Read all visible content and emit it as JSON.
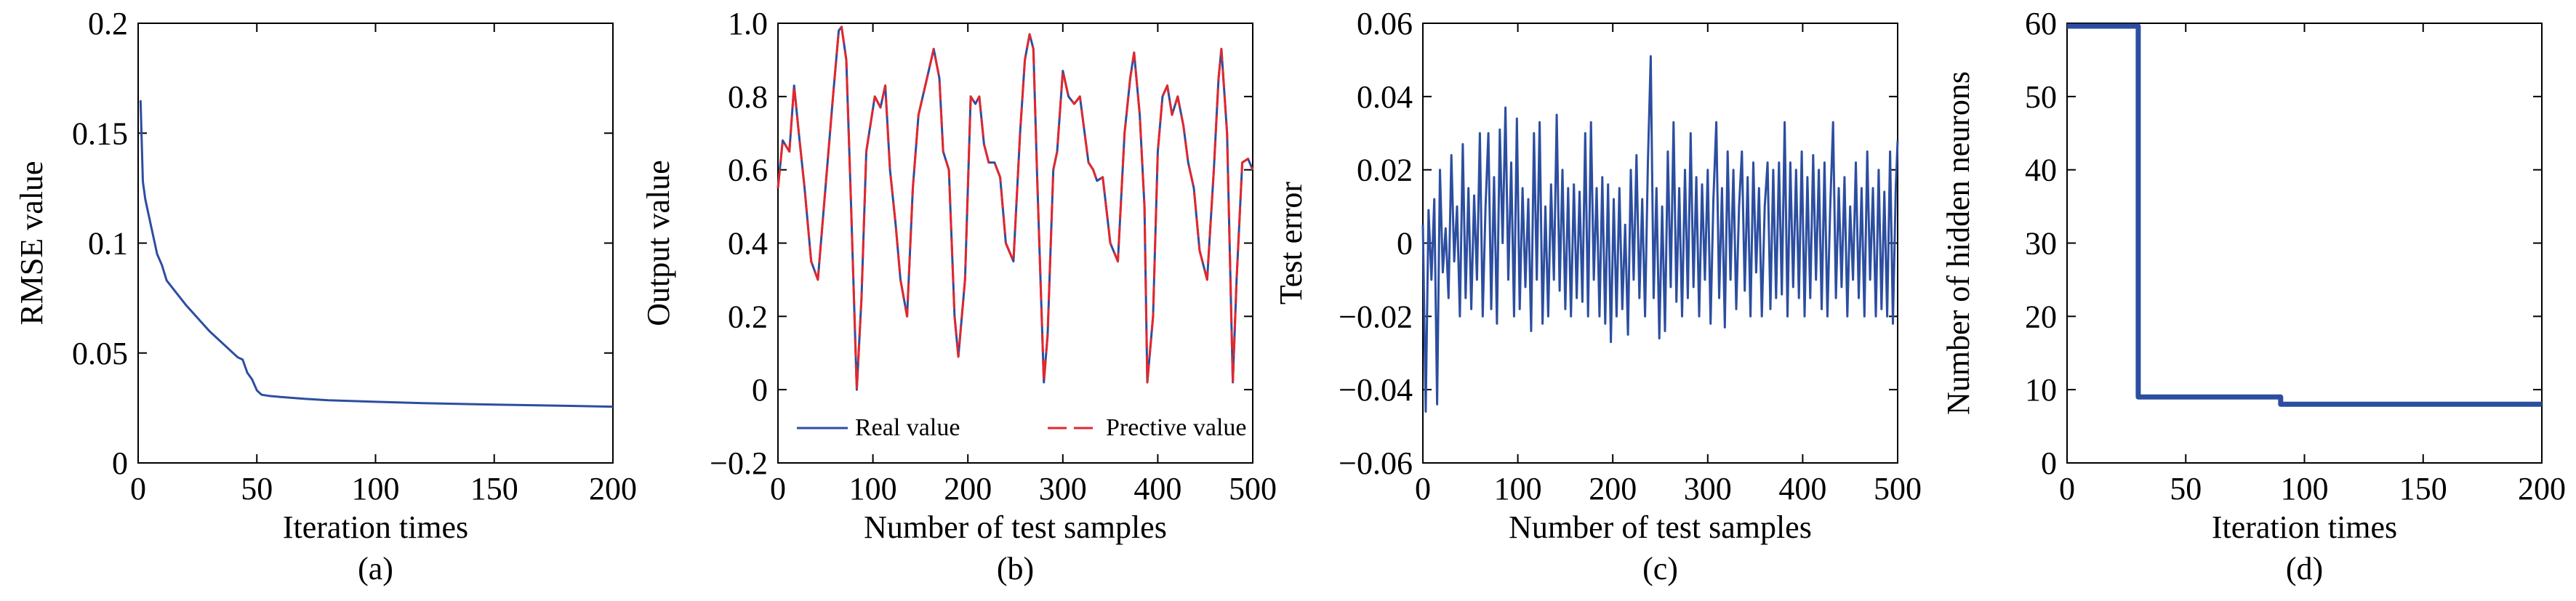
{
  "chart_data": [
    {
      "type": "line",
      "caption": "(a)",
      "xlabel": "Iteration times",
      "ylabel": "RMSE value",
      "xlim": [
        0,
        200
      ],
      "ylim": [
        0,
        0.2
      ],
      "xticks": [
        "0",
        "50",
        "100",
        "150",
        "200"
      ],
      "yticks": [
        "0",
        "0.05",
        "0.1",
        "0.15",
        "0.2"
      ],
      "series": [
        {
          "color": "#2c4ea0",
          "x": [
            1,
            2,
            3,
            5,
            8,
            10,
            12,
            20,
            30,
            40,
            42,
            44,
            46,
            48,
            50,
            52,
            55,
            60,
            70,
            80,
            100,
            120,
            150,
            180,
            200
          ],
          "y": [
            0.165,
            0.128,
            0.12,
            0.11,
            0.095,
            0.09,
            0.083,
            0.072,
            0.06,
            0.05,
            0.048,
            0.047,
            0.041,
            0.038,
            0.033,
            0.031,
            0.0305,
            0.03,
            0.0292,
            0.0285,
            0.0278,
            0.0272,
            0.0265,
            0.026,
            0.0256
          ]
        }
      ]
    },
    {
      "type": "line",
      "caption": "(b)",
      "xlabel": "Number of test samples",
      "ylabel": "Output value",
      "xlim": [
        0,
        500
      ],
      "ylim": [
        -0.2,
        1.0
      ],
      "xticks": [
        "0",
        "100",
        "200",
        "300",
        "400",
        "500"
      ],
      "yticks": [
        "−0.2",
        "0",
        "0.2",
        "0.4",
        "0.6",
        "0.8",
        "1.0"
      ],
      "legend": {
        "position": "bottom",
        "entries": [
          "Real value",
          "Prective value"
        ]
      },
      "series": [
        {
          "name": "Real value",
          "color": "#2c4ea0",
          "dash": "solid",
          "x": [
            0,
            5,
            12,
            17,
            22,
            28,
            35,
            42,
            50,
            58,
            64,
            67,
            72,
            77,
            83,
            88,
            93,
            102,
            108,
            113,
            118,
            124,
            129,
            136,
            142,
            148,
            157,
            164,
            170,
            174,
            180,
            186,
            190,
            197,
            203,
            208,
            212,
            217,
            222,
            228,
            234,
            240,
            248,
            255,
            260,
            265,
            269,
            273,
            280,
            284,
            290,
            294,
            300,
            306,
            312,
            318,
            322,
            327,
            332,
            336,
            342,
            350,
            358,
            365,
            371,
            375,
            381,
            386,
            389,
            395,
            400,
            405,
            410,
            415,
            421,
            427,
            432,
            438,
            444,
            452,
            459,
            464,
            467,
            473,
            479,
            483,
            489,
            495,
            500
          ],
          "y": [
            0.55,
            0.68,
            0.65,
            0.83,
            0.7,
            0.55,
            0.35,
            0.3,
            0.55,
            0.8,
            0.98,
            0.99,
            0.9,
            0.5,
            0.0,
            0.25,
            0.65,
            0.8,
            0.77,
            0.83,
            0.6,
            0.45,
            0.3,
            0.2,
            0.55,
            0.75,
            0.85,
            0.93,
            0.85,
            0.65,
            0.6,
            0.2,
            0.09,
            0.3,
            0.8,
            0.78,
            0.8,
            0.67,
            0.62,
            0.62,
            0.58,
            0.4,
            0.35,
            0.7,
            0.9,
            0.97,
            0.93,
            0.58,
            0.02,
            0.15,
            0.6,
            0.65,
            0.87,
            0.8,
            0.78,
            0.8,
            0.72,
            0.62,
            0.6,
            0.57,
            0.58,
            0.4,
            0.35,
            0.7,
            0.85,
            0.92,
            0.75,
            0.5,
            0.02,
            0.2,
            0.65,
            0.8,
            0.83,
            0.75,
            0.8,
            0.72,
            0.62,
            0.55,
            0.38,
            0.3,
            0.6,
            0.85,
            0.93,
            0.7,
            0.02,
            0.3,
            0.62,
            0.63,
            0.6
          ]
        },
        {
          "name": "Prective value",
          "color": "#e0282e",
          "dash": "dashed",
          "x": [
            0,
            5,
            12,
            17,
            22,
            28,
            35,
            42,
            50,
            58,
            64,
            67,
            72,
            77,
            83,
            88,
            93,
            102,
            108,
            113,
            118,
            124,
            129,
            136,
            142,
            148,
            157,
            164,
            170,
            174,
            180,
            186,
            190,
            197,
            203,
            208,
            212,
            217,
            222,
            228,
            234,
            240,
            248,
            255,
            260,
            265,
            269,
            273,
            280,
            284,
            290,
            294,
            300,
            306,
            312,
            318,
            322,
            327,
            332,
            336,
            342,
            350,
            358,
            365,
            371,
            375,
            381,
            386,
            389,
            395,
            400,
            405,
            410,
            415,
            421,
            427,
            432,
            438,
            444,
            452,
            459,
            464,
            467,
            473,
            479,
            483,
            489,
            495,
            500
          ],
          "y": [
            0.55,
            0.68,
            0.65,
            0.83,
            0.7,
            0.55,
            0.35,
            0.3,
            0.55,
            0.8,
            0.98,
            0.99,
            0.9,
            0.5,
            0.0,
            0.25,
            0.65,
            0.8,
            0.77,
            0.83,
            0.6,
            0.45,
            0.3,
            0.2,
            0.55,
            0.75,
            0.85,
            0.93,
            0.85,
            0.65,
            0.6,
            0.2,
            0.09,
            0.3,
            0.8,
            0.78,
            0.8,
            0.67,
            0.62,
            0.62,
            0.58,
            0.4,
            0.35,
            0.7,
            0.9,
            0.97,
            0.93,
            0.58,
            0.02,
            0.15,
            0.6,
            0.65,
            0.87,
            0.8,
            0.78,
            0.8,
            0.72,
            0.62,
            0.6,
            0.57,
            0.58,
            0.4,
            0.35,
            0.7,
            0.85,
            0.92,
            0.75,
            0.5,
            0.02,
            0.2,
            0.65,
            0.8,
            0.83,
            0.75,
            0.8,
            0.72,
            0.62,
            0.55,
            0.38,
            0.3,
            0.6,
            0.85,
            0.93,
            0.7,
            0.02,
            0.3,
            0.62,
            0.63,
            0.6
          ]
        }
      ]
    },
    {
      "type": "line",
      "caption": "(c)",
      "xlabel": "Number of test samples",
      "ylabel": "Test error",
      "xlim": [
        0,
        500
      ],
      "ylim": [
        -0.06,
        0.06
      ],
      "xticks": [
        "0",
        "100",
        "200",
        "300",
        "400",
        "500"
      ],
      "yticks": [
        "−0.06",
        "−0.04",
        "−0.02",
        "0",
        "0.02",
        "0.04",
        "0.06"
      ],
      "series": [
        {
          "color": "#2c4ea0",
          "x": [
            0,
            3,
            6,
            9,
            12,
            15,
            18,
            21,
            24,
            27,
            30,
            33,
            36,
            39,
            42,
            45,
            48,
            51,
            54,
            57,
            60,
            63,
            66,
            69,
            72,
            75,
            78,
            81,
            84,
            87,
            90,
            93,
            96,
            99,
            102,
            105,
            108,
            111,
            114,
            117,
            120,
            123,
            126,
            129,
            132,
            135,
            138,
            141,
            144,
            147,
            150,
            153,
            156,
            159,
            162,
            165,
            168,
            171,
            174,
            177,
            180,
            183,
            186,
            189,
            192,
            195,
            198,
            201,
            204,
            207,
            210,
            213,
            216,
            219,
            222,
            225,
            228,
            231,
            234,
            237,
            240,
            243,
            246,
            249,
            252,
            255,
            258,
            261,
            264,
            267,
            270,
            273,
            276,
            279,
            282,
            285,
            288,
            291,
            294,
            297,
            300,
            303,
            306,
            309,
            312,
            315,
            318,
            321,
            324,
            327,
            330,
            333,
            336,
            339,
            342,
            345,
            348,
            351,
            354,
            357,
            360,
            363,
            366,
            369,
            372,
            375,
            378,
            381,
            384,
            387,
            390,
            393,
            396,
            399,
            402,
            405,
            408,
            411,
            414,
            417,
            420,
            423,
            426,
            429,
            432,
            435,
            438,
            441,
            444,
            447,
            450,
            453,
            456,
            459,
            462,
            465,
            468,
            471,
            474,
            477,
            480,
            483,
            486,
            489,
            492,
            495,
            498,
            500
          ],
          "y": [
            0.005,
            -0.046,
            0.009,
            -0.01,
            0.012,
            -0.044,
            0.02,
            -0.008,
            0.004,
            -0.015,
            0.024,
            -0.005,
            0.01,
            -0.02,
            0.027,
            -0.015,
            0.015,
            -0.018,
            0.013,
            -0.01,
            0.03,
            -0.02,
            0.01,
            0.03,
            -0.018,
            0.018,
            -0.022,
            0.031,
            0.0,
            0.037,
            -0.01,
            0.022,
            -0.02,
            0.034,
            -0.018,
            0.015,
            -0.012,
            0.012,
            -0.024,
            0.03,
            -0.01,
            0.033,
            -0.022,
            0.01,
            -0.02,
            0.016,
            -0.01,
            0.035,
            -0.013,
            0.02,
            -0.018,
            0.015,
            -0.02,
            0.016,
            -0.015,
            0.014,
            -0.016,
            0.03,
            -0.02,
            0.033,
            -0.01,
            0.015,
            -0.02,
            0.018,
            -0.022,
            0.016,
            -0.027,
            0.012,
            -0.02,
            0.015,
            -0.018,
            0.005,
            -0.025,
            0.02,
            -0.01,
            0.024,
            -0.015,
            0.012,
            -0.02,
            0.022,
            0.051,
            -0.015,
            0.015,
            -0.026,
            0.01,
            -0.024,
            0.025,
            -0.012,
            0.033,
            -0.016,
            0.015,
            -0.02,
            0.02,
            -0.015,
            0.03,
            -0.012,
            0.018,
            -0.02,
            0.016,
            -0.01,
            0.02,
            -0.022,
            0.012,
            0.033,
            -0.015,
            0.015,
            -0.023,
            0.025,
            -0.01,
            0.02,
            -0.018,
            0.01,
            0.025,
            -0.013,
            0.018,
            -0.02,
            0.022,
            -0.008,
            0.015,
            -0.02,
            0.01,
            0.022,
            -0.018,
            0.02,
            -0.015,
            0.022,
            -0.014,
            0.033,
            -0.02,
            0.022,
            -0.012,
            0.02,
            -0.015,
            0.025,
            -0.02,
            0.018,
            -0.015,
            0.024,
            -0.01,
            0.02,
            -0.018,
            0.022,
            -0.02,
            0.01,
            0.033,
            -0.015,
            0.015,
            -0.012,
            0.018,
            -0.02,
            0.01,
            -0.01,
            0.022,
            -0.015,
            0.015,
            -0.02,
            0.025,
            -0.01,
            0.015,
            -0.02,
            0.02,
            -0.018,
            0.014,
            -0.02,
            0.025,
            -0.022,
            0.015,
            0.028
          ]
        }
      ]
    },
    {
      "type": "line",
      "caption": "(d)",
      "xlabel": "Iteration times",
      "ylabel": "Number of hidden neurons",
      "xlim": [
        0,
        200
      ],
      "ylim": [
        0,
        60
      ],
      "xticks": [
        "0",
        "50",
        "100",
        "150",
        "200"
      ],
      "yticks": [
        "0",
        "10",
        "20",
        "30",
        "40",
        "50",
        "60"
      ],
      "series": [
        {
          "color": "#2c4ea0",
          "x": [
            0,
            30,
            30,
            90,
            90,
            200
          ],
          "y": [
            59.6,
            59.6,
            9.0,
            9.0,
            8.0,
            8.0
          ]
        }
      ]
    }
  ]
}
